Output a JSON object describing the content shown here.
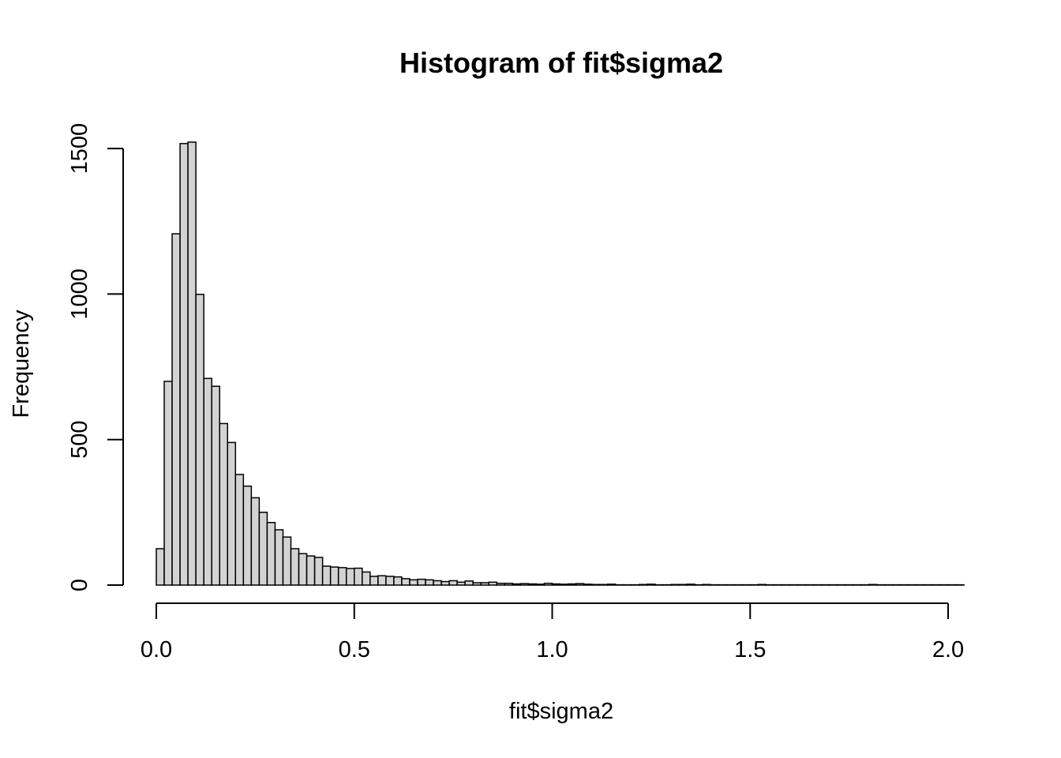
{
  "chart_data": {
    "type": "bar",
    "title": "Histogram of fit$sigma2",
    "xlabel": "fit$sigma2",
    "ylabel": "Frequency",
    "bin_width": 0.02,
    "bin_start": 0.0,
    "xlim": [
      0.0,
      2.04
    ],
    "ylim": [
      0,
      1500
    ],
    "x_ticks": [
      "0.0",
      "0.5",
      "1.0",
      "1.5",
      "2.0"
    ],
    "y_ticks": [
      "0",
      "500",
      "1000",
      "1500"
    ],
    "bar_fill": "#d3d3d3",
    "bar_edge": "#000000",
    "values": [
      125,
      700,
      1207,
      1517,
      1522,
      999,
      710,
      683,
      555,
      490,
      380,
      340,
      300,
      250,
      215,
      190,
      165,
      125,
      108,
      100,
      95,
      65,
      62,
      60,
      57,
      58,
      45,
      30,
      32,
      30,
      28,
      22,
      18,
      20,
      18,
      15,
      12,
      15,
      10,
      14,
      8,
      8,
      10,
      6,
      6,
      4,
      5,
      4,
      3,
      6,
      4,
      3,
      4,
      5,
      3,
      2,
      2,
      3,
      1,
      1,
      1,
      2,
      3,
      1,
      1,
      2,
      2,
      3,
      1,
      2,
      1,
      1,
      1,
      1,
      1,
      1,
      2,
      1,
      1,
      1,
      1,
      1,
      1,
      1,
      1,
      1,
      1,
      1,
      1,
      1,
      2,
      1,
      1,
      1,
      1,
      1,
      1,
      1,
      1,
      1,
      1,
      1
    ]
  }
}
